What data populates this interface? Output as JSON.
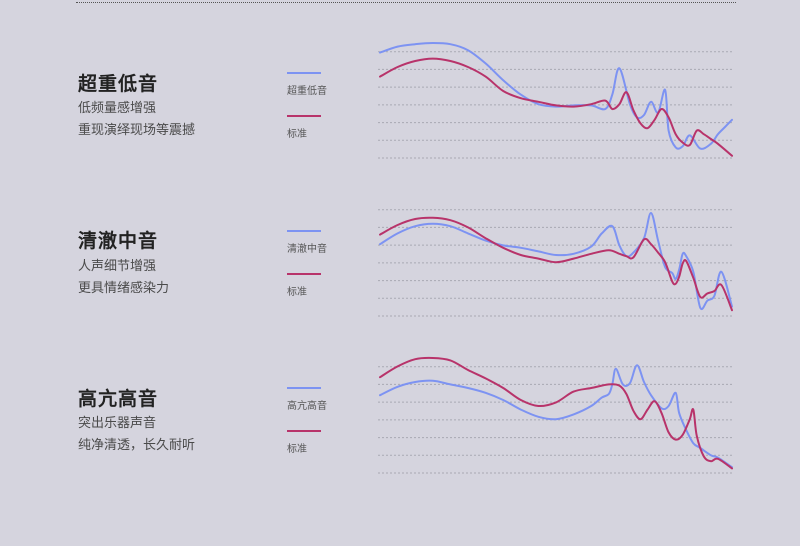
{
  "colors": {
    "enhanced": "#7d93f2",
    "standard": "#b8336a",
    "grid": "#a9a9b3",
    "background": "#d5d4de"
  },
  "panels": [
    {
      "title": "超重低音",
      "desc": [
        "低频量感增强",
        "重现演绎现场等震撼"
      ],
      "legend": [
        "超重低音",
        "标准"
      ]
    },
    {
      "title": "清澈中音",
      "desc": [
        "人声细节增强",
        "更具情绪感染力"
      ],
      "legend": [
        "清澈中音",
        "标准"
      ]
    },
    {
      "title": "高亢高音",
      "desc": [
        "突出乐器声音",
        "纯净清透，长久耐听"
      ],
      "legend": [
        "高亢高音",
        "标准"
      ]
    }
  ],
  "chart_data": [
    {
      "type": "line",
      "title": "",
      "xlabel": "",
      "ylabel": "",
      "grid": true,
      "xlim": [
        0,
        100
      ],
      "ylim": [
        0,
        100
      ],
      "series": [
        {
          "name": "超重低音",
          "color": "#7d93f2",
          "x": [
            0,
            5,
            10,
            15,
            20,
            25,
            30,
            35,
            40,
            45,
            50,
            55,
            60,
            64,
            66,
            68,
            71,
            73,
            75,
            77,
            79,
            81,
            82,
            84,
            86,
            88,
            91,
            94,
            96,
            98,
            100
          ],
          "y": [
            87,
            92,
            94,
            95,
            94,
            89,
            78,
            64,
            52,
            44,
            42,
            43,
            43,
            40,
            52,
            74,
            44,
            33,
            35,
            46,
            37,
            56,
            22,
            8,
            9,
            18,
            7,
            11,
            19,
            25,
            31
          ]
        },
        {
          "name": "标准",
          "color": "#b8336a",
          "x": [
            0,
            5,
            10,
            15,
            20,
            25,
            30,
            35,
            40,
            45,
            50,
            55,
            60,
            64,
            66,
            68,
            70,
            72,
            74,
            76,
            78,
            80,
            82,
            84,
            86,
            88,
            90,
            92,
            94,
            96,
            100
          ],
          "y": [
            67,
            75,
            80,
            82,
            80,
            75,
            67,
            55,
            49,
            46,
            43,
            42,
            44,
            47,
            40,
            44,
            54,
            39,
            28,
            24,
            31,
            40,
            33,
            19,
            12,
            10,
            22,
            19,
            15,
            11,
            1
          ]
        }
      ]
    },
    {
      "type": "line",
      "title": "",
      "xlabel": "",
      "ylabel": "",
      "grid": true,
      "xlim": [
        0,
        100
      ],
      "ylim": [
        0,
        100
      ],
      "series": [
        {
          "name": "清澈中音",
          "color": "#7d93f2",
          "x": [
            0,
            5,
            10,
            15,
            20,
            25,
            30,
            35,
            40,
            45,
            50,
            55,
            60,
            63,
            66,
            68,
            70,
            72,
            75,
            77,
            79,
            81,
            83,
            84,
            85,
            86,
            87,
            89,
            91,
            93,
            95,
            97,
            100
          ],
          "y": [
            59,
            68,
            74,
            76,
            74,
            68,
            62,
            58,
            56,
            53,
            50,
            51,
            57,
            68,
            74,
            58,
            49,
            52,
            64,
            85,
            62,
            40,
            35,
            30,
            38,
            51,
            49,
            36,
            6,
            12,
            16,
            36,
            7
          ]
        },
        {
          "name": "标准",
          "color": "#b8336a",
          "x": [
            0,
            5,
            10,
            15,
            20,
            25,
            30,
            35,
            40,
            45,
            50,
            55,
            60,
            65,
            68,
            70,
            72,
            75,
            77,
            79,
            81,
            83,
            84,
            85,
            86,
            87,
            89,
            91,
            93,
            95,
            97,
            100
          ],
          "y": [
            67,
            75,
            80,
            81,
            79,
            73,
            64,
            56,
            50,
            47,
            44,
            47,
            51,
            54,
            51,
            49,
            48,
            63,
            59,
            52,
            44,
            28,
            26,
            32,
            43,
            45,
            31,
            15,
            18,
            20,
            25,
            4
          ]
        }
      ]
    },
    {
      "type": "line",
      "title": "",
      "xlabel": "",
      "ylabel": "",
      "grid": true,
      "xlim": [
        0,
        100
      ],
      "ylim": [
        0,
        100
      ],
      "series": [
        {
          "name": "高亢高音",
          "color": "#7d93f2",
          "x": [
            0,
            5,
            10,
            15,
            20,
            25,
            30,
            35,
            40,
            45,
            50,
            55,
            60,
            63,
            65,
            66,
            67,
            69,
            71,
            73,
            75,
            77,
            80,
            82,
            84,
            85,
            87,
            89,
            91,
            94,
            96,
            100
          ],
          "y": [
            64,
            71,
            75,
            76,
            73,
            70,
            66,
            60,
            52,
            46,
            44,
            48,
            55,
            62,
            65,
            73,
            86,
            73,
            74,
            89,
            75,
            64,
            53,
            55,
            66,
            49,
            35,
            24,
            20,
            14,
            12,
            4
          ]
        },
        {
          "name": "标准",
          "color": "#b8336a",
          "x": [
            0,
            5,
            10,
            15,
            20,
            25,
            30,
            35,
            40,
            45,
            50,
            55,
            60,
            65,
            68,
            70,
            72,
            74,
            76,
            78,
            80,
            82,
            84,
            86,
            88,
            89,
            90,
            92,
            94,
            96,
            100
          ],
          "y": [
            79,
            88,
            94,
            95,
            93,
            85,
            78,
            70,
            60,
            55,
            58,
            67,
            70,
            73,
            72,
            65,
            51,
            44,
            52,
            59,
            49,
            33,
            27,
            31,
            44,
            52,
            30,
            13,
            9,
            11,
            3
          ]
        }
      ]
    }
  ]
}
